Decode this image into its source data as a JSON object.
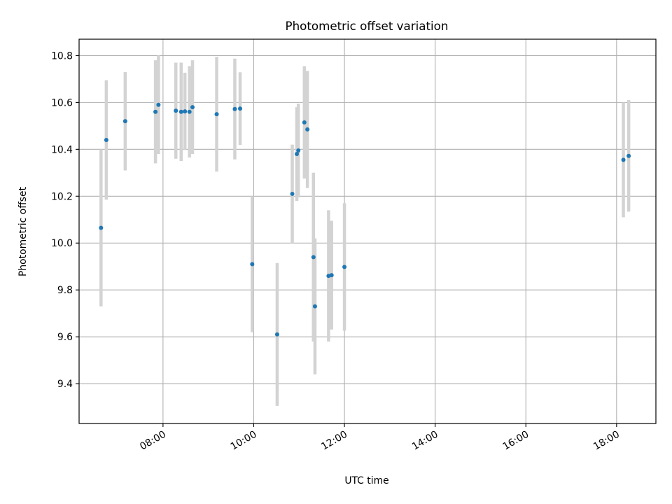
{
  "chart_data": {
    "type": "scatter",
    "title": "Photometric offset variation",
    "xlabel": "UTC time",
    "ylabel": "Photometric offset",
    "x_ticks": [
      "08:00",
      "10:00",
      "12:00",
      "14:00",
      "16:00",
      "18:00"
    ],
    "y_ticks": [
      "9.4",
      "9.6",
      "9.8",
      "10.0",
      "10.2",
      "10.4",
      "10.6",
      "10.8"
    ],
    "xlim": [
      "06:09",
      "18:52"
    ],
    "ylim": [
      9.23,
      10.87
    ],
    "grid": true,
    "marker_color": "#1f77b4",
    "errorbar_color": "#d3d3d3",
    "series": [
      {
        "points": [
          {
            "x": "06:38",
            "y": 10.065,
            "err": 0.335
          },
          {
            "x": "06:45",
            "y": 10.44,
            "err": 0.255
          },
          {
            "x": "07:10",
            "y": 10.52,
            "err": 0.21
          },
          {
            "x": "07:50",
            "y": 10.56,
            "err": 0.22
          },
          {
            "x": "07:54",
            "y": 10.59,
            "err": 0.21
          },
          {
            "x": "08:17",
            "y": 10.565,
            "err": 0.205
          },
          {
            "x": "08:24",
            "y": 10.56,
            "err": 0.21
          },
          {
            "x": "08:29",
            "y": 10.562,
            "err": 0.165
          },
          {
            "x": "08:35",
            "y": 10.56,
            "err": 0.195
          },
          {
            "x": "08:39",
            "y": 10.58,
            "err": 0.2
          },
          {
            "x": "09:11",
            "y": 10.55,
            "err": 0.245
          },
          {
            "x": "09:35",
            "y": 10.572,
            "err": 0.215
          },
          {
            "x": "09:42",
            "y": 10.574,
            "err": 0.155
          },
          {
            "x": "09:58",
            "y": 9.91,
            "err": 0.29
          },
          {
            "x": "10:31",
            "y": 9.61,
            "err": 0.305
          },
          {
            "x": "10:51",
            "y": 10.21,
            "err": 0.21
          },
          {
            "x": "10:57",
            "y": 10.38,
            "err": 0.2
          },
          {
            "x": "10:59",
            "y": 10.395,
            "err": 0.2
          },
          {
            "x": "11:07",
            "y": 10.515,
            "err": 0.24
          },
          {
            "x": "11:11",
            "y": 10.485,
            "err": 0.25
          },
          {
            "x": "11:19",
            "y": 9.94,
            "err": 0.36
          },
          {
            "x": "11:21",
            "y": 9.73,
            "err": 0.29
          },
          {
            "x": "11:39",
            "y": 9.86,
            "err": 0.28
          },
          {
            "x": "11:43",
            "y": 9.863,
            "err": 0.232
          },
          {
            "x": "12:00",
            "y": 9.898,
            "err": 0.272
          },
          {
            "x": "18:09",
            "y": 10.355,
            "err": 0.245
          },
          {
            "x": "18:16",
            "y": 10.372,
            "err": 0.238
          }
        ]
      }
    ]
  }
}
